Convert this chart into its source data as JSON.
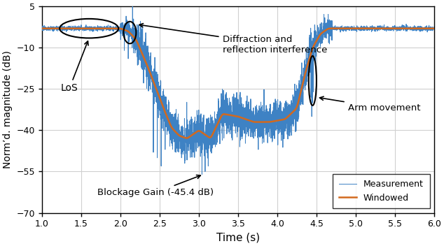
{
  "title": "",
  "xlabel": "Time (s)",
  "ylabel": "Normʼd. magnitude (dB)",
  "xlim": [
    1,
    6
  ],
  "ylim": [
    -70,
    5
  ],
  "yticks": [
    -70,
    -55,
    -40,
    -25,
    -10,
    5
  ],
  "xticks": [
    1,
    1.5,
    2,
    2.5,
    3,
    3.5,
    4,
    4.5,
    5,
    5.5,
    6
  ],
  "measurement_color": "#3e82c4",
  "windowed_color": "#d2691e",
  "background_color": "#ffffff",
  "grid_color": "#d0d0d0",
  "los_label": "LoS",
  "blockage_label": "Blockage Gain (-45.4 dB)",
  "diffraction_label": "Diffraction and\nreflection interference",
  "arm_label": "Arm movement",
  "legend_measurement": "Measurement",
  "legend_windowed": "Windowed"
}
